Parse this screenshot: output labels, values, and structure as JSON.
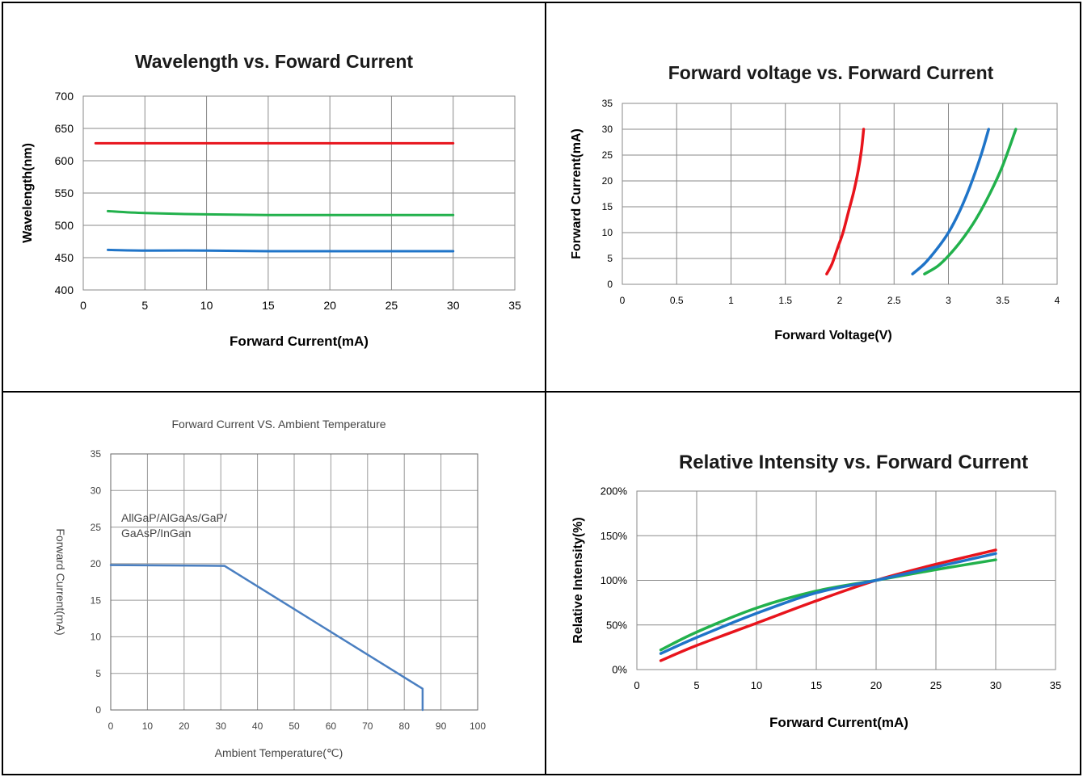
{
  "chart_data": [
    {
      "type": "line",
      "title": "Wavelength vs. Foward Current",
      "xlabel": "Forward Current(mA)",
      "ylabel": "Wavelength(nm)",
      "xlim": [
        0,
        35
      ],
      "ylim": [
        400,
        700
      ],
      "xticks": [
        0,
        5,
        10,
        15,
        20,
        25,
        30,
        35
      ],
      "yticks": [
        400,
        450,
        500,
        550,
        600,
        650,
        700
      ],
      "grid": true,
      "series": [
        {
          "color": "#e8141c",
          "x": [
            1,
            5,
            10,
            15,
            20,
            25,
            30
          ],
          "y": [
            627,
            627,
            627,
            627,
            627,
            627,
            627
          ]
        },
        {
          "color": "#22b14c",
          "x": [
            2,
            5,
            10,
            15,
            20,
            25,
            30
          ],
          "y": [
            522,
            519,
            517,
            516,
            516,
            516,
            516
          ]
        },
        {
          "color": "#1f74c8",
          "x": [
            2,
            5,
            10,
            15,
            20,
            25,
            30
          ],
          "y": [
            462,
            461,
            461,
            460,
            460,
            460,
            460
          ]
        }
      ]
    },
    {
      "type": "line",
      "title": "Forward voltage vs. Forward Current",
      "xlabel": "Forward Voltage(V)",
      "ylabel": "Forward Current(mA)",
      "xlim": [
        0,
        4
      ],
      "ylim": [
        0,
        35
      ],
      "xticks": [
        0,
        0.5,
        1,
        1.5,
        2,
        2.5,
        3,
        3.5,
        4
      ],
      "yticks": [
        0,
        5,
        10,
        15,
        20,
        25,
        30,
        35
      ],
      "grid": true,
      "series": [
        {
          "color": "#e8141c",
          "x": [
            1.88,
            1.93,
            1.98,
            2.03,
            2.08,
            2.13,
            2.17,
            2.2,
            2.22
          ],
          "y": [
            2,
            4,
            7,
            10,
            14,
            18,
            22,
            26,
            30
          ]
        },
        {
          "color": "#1f74c8",
          "x": [
            2.67,
            2.78,
            2.9,
            3.0,
            3.1,
            3.2,
            3.3,
            3.37
          ],
          "y": [
            2,
            4,
            7,
            10,
            14,
            19,
            25,
            30
          ]
        },
        {
          "color": "#22b14c",
          "x": [
            2.78,
            2.9,
            3.0,
            3.12,
            3.25,
            3.38,
            3.5,
            3.62
          ],
          "y": [
            2,
            3.5,
            5.5,
            8.5,
            12.5,
            17.5,
            23,
            30
          ]
        }
      ]
    },
    {
      "type": "line",
      "title": "Forward Current VS. Ambient Temperature",
      "xlabel": "Ambient Temperature(℃)",
      "ylabel": "Forward  Current(mA)",
      "xlim": [
        0,
        100
      ],
      "ylim": [
        0,
        35
      ],
      "xticks": [
        0,
        10,
        20,
        30,
        40,
        50,
        60,
        70,
        80,
        90,
        100
      ],
      "yticks": [
        0,
        5,
        10,
        15,
        20,
        25,
        30,
        35
      ],
      "grid": true,
      "annotation": [
        "AllGaP/AlGaAs/GaP/",
        "GaAsP/InGan"
      ],
      "series": [
        {
          "color": "#4a7fc1",
          "x": [
            0,
            31,
            85,
            85
          ],
          "y": [
            19.8,
            19.7,
            2.9,
            0
          ]
        }
      ]
    },
    {
      "type": "line",
      "title": "Relative Intensity vs. Forward Current",
      "xlabel": "Forward Current(mA)",
      "ylabel": "Relative Intensity(%)",
      "xlim": [
        0,
        35
      ],
      "ylim": [
        0,
        200
      ],
      "xticks": [
        0,
        5,
        10,
        15,
        20,
        25,
        30,
        35
      ],
      "yticks": [
        0,
        50,
        100,
        150,
        200
      ],
      "ytick_labels": [
        "0%",
        "50%",
        "100%",
        "150%",
        "200%"
      ],
      "grid": true,
      "series": [
        {
          "color": "#e8141c",
          "x": [
            2,
            5,
            10,
            15,
            20,
            25,
            30
          ],
          "y": [
            10,
            27,
            52,
            77,
            100,
            118,
            134
          ]
        },
        {
          "color": "#22b14c",
          "x": [
            2,
            5,
            10,
            15,
            20,
            25,
            30
          ],
          "y": [
            22,
            42,
            69,
            88,
            100,
            112,
            123
          ]
        },
        {
          "color": "#1f74c8",
          "x": [
            2,
            5,
            10,
            15,
            20,
            25,
            30
          ],
          "y": [
            18,
            36,
            63,
            86,
            100,
            115,
            130
          ]
        }
      ]
    }
  ]
}
